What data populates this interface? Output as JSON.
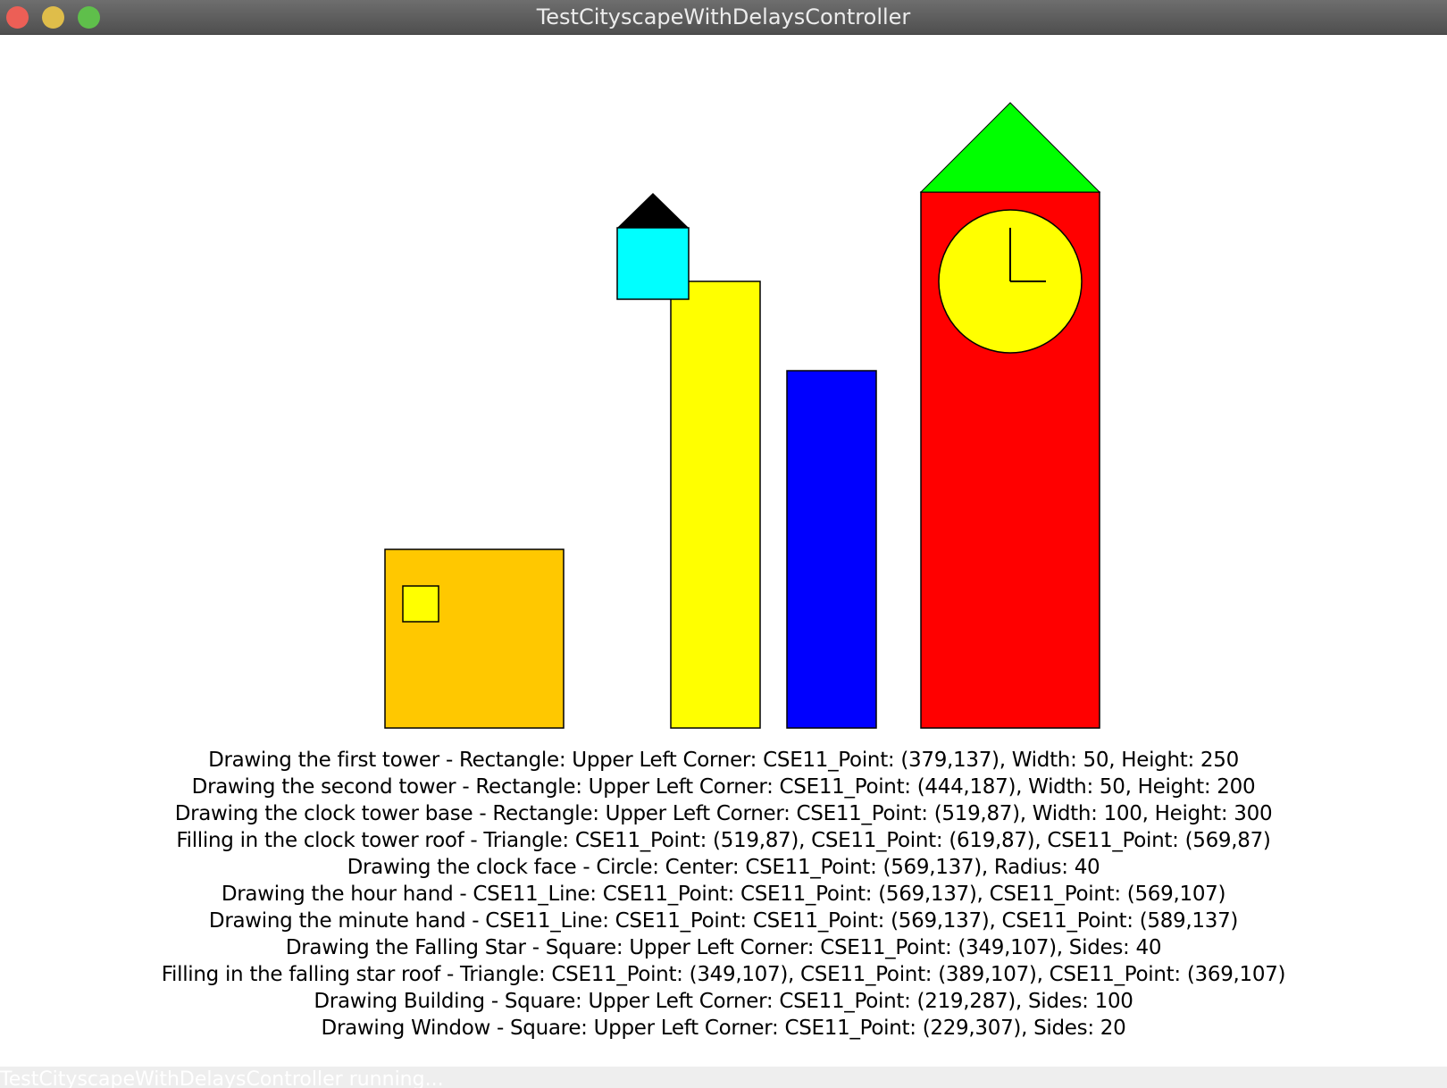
{
  "window": {
    "title": "TestCityscapeWithDelaysController"
  },
  "scene": {
    "shapes": [
      {
        "name": "building",
        "color": "#ffc800"
      },
      {
        "name": "window",
        "color": "#ffff00"
      },
      {
        "name": "first-tower",
        "color": "#ffff00"
      },
      {
        "name": "falling-star-square",
        "color": "#00ffff"
      },
      {
        "name": "falling-star-roof",
        "color": "#000000"
      },
      {
        "name": "second-tower",
        "color": "#0000ff"
      },
      {
        "name": "clock-tower-base",
        "color": "#ff0000"
      },
      {
        "name": "clock-tower-roof",
        "color": "#00ff00"
      },
      {
        "name": "clock-face",
        "color": "#ffff00"
      },
      {
        "name": "hour-hand",
        "color": "#000000"
      },
      {
        "name": "minute-hand",
        "color": "#000000"
      }
    ]
  },
  "log": [
    "Drawing the first tower - Rectangle: Upper Left Corner: CSE11_Point: (379,137), Width: 50, Height: 250",
    "Drawing the second tower - Rectangle: Upper Left Corner: CSE11_Point: (444,187), Width: 50, Height: 200",
    "Drawing the clock tower base - Rectangle: Upper Left Corner: CSE11_Point: (519,87), Width: 100, Height: 300",
    "Filling in the clock tower roof - Triangle: CSE11_Point: (519,87), CSE11_Point: (619,87), CSE11_Point: (569,87)",
    "Drawing the clock face - Circle: Center: CSE11_Point: (569,137), Radius: 40",
    "Drawing the hour hand - CSE11_Line: CSE11_Point: CSE11_Point: (569,137), CSE11_Point: (569,107)",
    "Drawing the minute hand - CSE11_Line: CSE11_Point: CSE11_Point: (569,137), CSE11_Point: (589,137)",
    "Drawing the Falling Star - Square: Upper Left Corner: CSE11_Point: (349,107), Sides: 40",
    "Filling in the falling star roof - Triangle: CSE11_Point: (349,107), CSE11_Point: (389,107), CSE11_Point: (369,107)",
    "Drawing Building - Square: Upper Left Corner: CSE11_Point: (219,287), Sides: 100",
    "Drawing Window - Square: Upper Left Corner: CSE11_Point: (229,307), Sides: 20"
  ],
  "status": {
    "text": "TestCityscapeWithDelaysController running..."
  }
}
